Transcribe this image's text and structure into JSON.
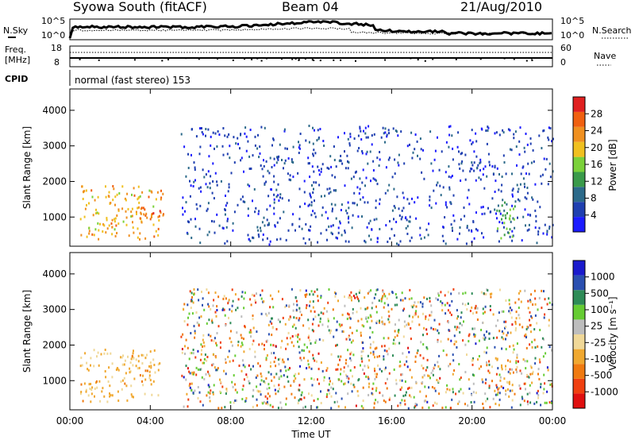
{
  "header": {
    "station": "Syowa South (fitACF)",
    "beam": "Beam 04",
    "date": "21/Aug/2010"
  },
  "top_panels": {
    "nsky_label": "N.Sky",
    "nsky_ticks": [
      "10^5",
      "10^0"
    ],
    "nsearch_label": "N.Search",
    "nsearch_ticks": [
      "10^5",
      "10^0"
    ],
    "freq_label_1": "Freq.",
    "freq_label_2": "[MHz]",
    "freq_ticks": [
      "18",
      "8"
    ],
    "nave_label": "Nave",
    "nave_ticks": [
      "60",
      "0"
    ],
    "cpid_label": "CPID",
    "cpid_value": "normal (fast stereo) 153"
  },
  "colors": {
    "power_scale": [
      "#1b1bff",
      "#1f3fb0",
      "#2c6a8a",
      "#3a9a4a",
      "#7bd13a",
      "#f0c020",
      "#f09020",
      "#f06010",
      "#e02020"
    ],
    "velocity_scale": [
      "#e01010",
      "#f04010",
      "#f07a10",
      "#f0a830",
      "#f0d898",
      "#bdbdbd",
      "#66cc33",
      "#2e8b57",
      "#2a4fb0",
      "#1a1acc"
    ]
  },
  "chart_data": [
    {
      "type": "heatmap",
      "title": "",
      "xlabel": "",
      "ylabel": "Slant Range [km]",
      "x_ticks": [
        "00:00",
        "04:00",
        "08:00",
        "12:00",
        "16:00",
        "20:00",
        "00:00"
      ],
      "y_ticks": [
        "1000",
        "2000",
        "3000",
        "4000"
      ],
      "ylim": [
        180,
        4600
      ],
      "xlim": [
        0,
        24
      ],
      "colorbar": {
        "label": "Power [dB]",
        "ticks": [
          "4",
          "8",
          "12",
          "16",
          "20",
          "24",
          "28"
        ],
        "range": [
          0,
          30
        ]
      },
      "regions": [
        {
          "x": [
            0.5,
            4.5
          ],
          "y": [
            400,
            1900
          ],
          "values": [
            16,
            24
          ]
        },
        {
          "x": [
            3.3,
            4.7
          ],
          "y": [
            900,
            1800
          ],
          "values": [
            20,
            30
          ]
        },
        {
          "x": [
            5.5,
            24
          ],
          "y": [
            250,
            3600
          ],
          "values": [
            2,
            8
          ]
        },
        {
          "x": [
            21.2,
            22.2
          ],
          "y": [
            400,
            1700
          ],
          "values": [
            8,
            16
          ]
        }
      ]
    },
    {
      "type": "heatmap",
      "title": "",
      "xlabel": "Time UT",
      "ylabel": "Slant Range [km]",
      "x_ticks": [
        "00:00",
        "04:00",
        "08:00",
        "12:00",
        "16:00",
        "20:00",
        "00:00"
      ],
      "y_ticks": [
        "1000",
        "2000",
        "3000",
        "4000"
      ],
      "ylim": [
        180,
        4600
      ],
      "xlim": [
        0,
        24
      ],
      "colorbar": {
        "label": "Velocity [m s⁻¹]",
        "ticks": [
          "1000",
          "500",
          "100",
          "25",
          "-25",
          "-100",
          "-500",
          "-1000"
        ],
        "range": [
          -1200,
          1200
        ]
      },
      "regions": [
        {
          "x": [
            0.5,
            4.5
          ],
          "y": [
            400,
            1900
          ],
          "values": [
            -500,
            -100
          ]
        },
        {
          "x": [
            5.5,
            24
          ],
          "y": [
            250,
            3600
          ],
          "values": [
            -1000,
            1000
          ]
        },
        {
          "x": [
            21.2,
            22.2
          ],
          "y": [
            400,
            1700
          ],
          "values": [
            -500,
            -100
          ]
        }
      ]
    }
  ]
}
